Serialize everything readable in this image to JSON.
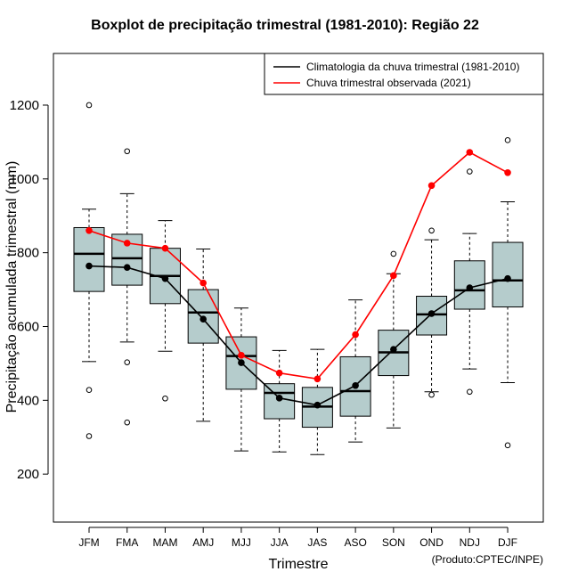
{
  "chart_data": {
    "type": "boxplot",
    "title": "Boxplot de precipitação trimestral (1981-2010): Região 22",
    "xlabel": "Trimestre",
    "ylabel": "Precipitação acumulada trimestral (mm)",
    "credit": "(Produto:CPTEC/INPE)",
    "ylim": [
      70,
      1340
    ],
    "yticks": [
      200,
      400,
      600,
      800,
      1000,
      1200
    ],
    "categories": [
      "JFM",
      "FMA",
      "MAM",
      "AMJ",
      "MJJ",
      "JJA",
      "JAS",
      "ASO",
      "SON",
      "OND",
      "NDJ",
      "DJF"
    ],
    "boxes": [
      {
        "whisker_low": 505,
        "q1": 695,
        "median": 797,
        "q3": 868,
        "whisker_high": 918,
        "outliers": [
          428,
          303,
          1200
        ]
      },
      {
        "whisker_low": 558,
        "q1": 712,
        "median": 785,
        "q3": 850,
        "whisker_high": 960,
        "outliers": [
          503,
          340,
          1075
        ]
      },
      {
        "whisker_low": 533,
        "q1": 662,
        "median": 737,
        "q3": 812,
        "whisker_high": 887,
        "outliers": [
          405
        ]
      },
      {
        "whisker_low": 343,
        "q1": 555,
        "median": 638,
        "q3": 700,
        "whisker_high": 810,
        "outliers": []
      },
      {
        "whisker_low": 263,
        "q1": 430,
        "median": 520,
        "q3": 572,
        "whisker_high": 650,
        "outliers": []
      },
      {
        "whisker_low": 260,
        "q1": 350,
        "median": 420,
        "q3": 445,
        "whisker_high": 535,
        "outliers": []
      },
      {
        "whisker_low": 253,
        "q1": 327,
        "median": 383,
        "q3": 435,
        "whisker_high": 538,
        "outliers": []
      },
      {
        "whisker_low": 287,
        "q1": 357,
        "median": 425,
        "q3": 518,
        "whisker_high": 672,
        "outliers": []
      },
      {
        "whisker_low": 325,
        "q1": 467,
        "median": 530,
        "q3": 590,
        "whisker_high": 743,
        "outliers": [
          797
        ]
      },
      {
        "whisker_low": 423,
        "q1": 577,
        "median": 633,
        "q3": 682,
        "whisker_high": 835,
        "outliers": [
          415,
          860
        ]
      },
      {
        "whisker_low": 485,
        "q1": 647,
        "median": 698,
        "q3": 778,
        "whisker_high": 852,
        "outliers": [
          423,
          1020
        ]
      },
      {
        "whisker_low": 448,
        "q1": 653,
        "median": 725,
        "q3": 828,
        "whisker_high": 938,
        "outliers": [
          278,
          1105
        ]
      }
    ],
    "series": [
      {
        "name": "Climatologia da chuva trimestral (1981-2010)",
        "color": "#000000",
        "values": [
          764,
          760,
          730,
          620,
          502,
          406,
          387,
          440,
          538,
          635,
          705,
          730
        ]
      },
      {
        "name": "Chuva trimestral observada (2021)",
        "color": "#ff0000",
        "values": [
          860,
          826,
          812,
          718,
          522,
          474,
          458,
          578,
          738,
          982,
          1072,
          1017
        ]
      }
    ],
    "box_fill": "#b5cccc",
    "legend_position": "top-right"
  }
}
